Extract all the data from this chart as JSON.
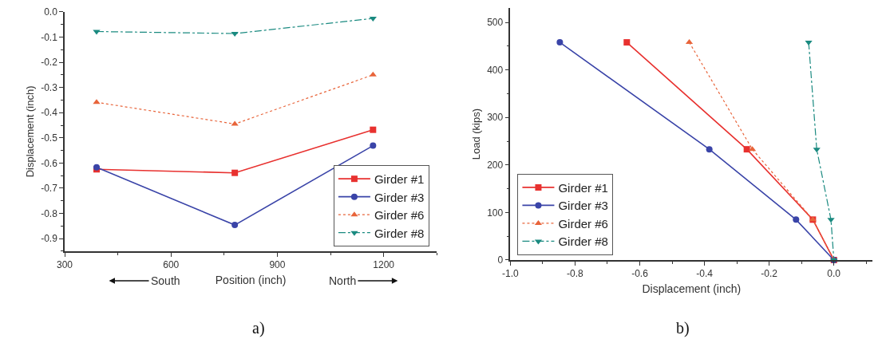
{
  "chart_data": [
    {
      "type": "line",
      "xlabel": "Position (inch)",
      "ylabel": "Displacement (inch)",
      "xlim": [
        300,
        1350
      ],
      "xticks": [
        300,
        600,
        900,
        1200
      ],
      "ylim": [
        -0.95,
        0.0
      ],
      "yticks": [
        {
          "value": 0.0,
          "label": "0.0"
        },
        -0.1,
        -0.2,
        -0.3,
        -0.4,
        -0.5,
        -0.6,
        -0.7,
        -0.8,
        -0.9
      ],
      "legend": "bottom right",
      "annotations": [
        "South",
        "North",
        "a)"
      ],
      "series": [
        {
          "name": "Girder #1",
          "color": "#e8312f",
          "marker": "square",
          "line_style": "solid",
          "x": [
            390,
            780,
            1170
          ],
          "values": [
            -0.625,
            -0.639,
            -0.468
          ]
        },
        {
          "name": "Girder #3",
          "color": "#3a44a8",
          "marker": "circle",
          "line_style": "solid",
          "x": [
            390,
            780,
            1170
          ],
          "values": [
            -0.617,
            -0.846,
            -0.531
          ]
        },
        {
          "name": "Girder #6",
          "color": "#e8643a",
          "marker": "triangle",
          "line_style": "dotted",
          "x": [
            390,
            780,
            1170
          ],
          "values": [
            -0.359,
            -0.445,
            -0.25
          ]
        },
        {
          "name": "Girder #8",
          "color": "#1a8a80",
          "marker": "triangle-down",
          "line_style": "dashed",
          "x": [
            390,
            780,
            1170
          ],
          "values": [
            -0.078,
            -0.086,
            -0.026
          ]
        }
      ]
    },
    {
      "type": "line",
      "xlabel": "Displacement (inch)",
      "ylabel": "Load (kips)",
      "xlim": [
        -1.0,
        0.12
      ],
      "xticks": [
        {
          "value": -1.0,
          "label": "-1.0"
        },
        -0.8,
        -0.6,
        -0.4,
        -0.2,
        {
          "value": 0.0,
          "label": "0.0"
        }
      ],
      "ylim": [
        0,
        530
      ],
      "yticks": [
        0,
        100,
        200,
        300,
        400,
        500
      ],
      "legend": "bottom left",
      "annotations": [
        "b)"
      ],
      "series": [
        {
          "name": "Girder #1",
          "color": "#e8312f",
          "marker": "square",
          "line_style": "solid",
          "x": [
            -0.64,
            -0.269,
            -0.065,
            0.0
          ],
          "values": [
            458,
            233,
            85,
            0
          ]
        },
        {
          "name": "Girder #3",
          "color": "#3a44a8",
          "marker": "circle",
          "line_style": "solid",
          "x": [
            -0.847,
            -0.385,
            -0.117,
            0.0
          ],
          "values": [
            458,
            233,
            85,
            0
          ]
        },
        {
          "name": "Girder #6",
          "color": "#e8643a",
          "marker": "triangle",
          "line_style": "dotted",
          "x": [
            -0.447,
            -0.252,
            -0.065,
            0.0
          ],
          "values": [
            458,
            233,
            85,
            0
          ]
        },
        {
          "name": "Girder #8",
          "color": "#1a8a80",
          "marker": "triangle-down",
          "line_style": "dashed",
          "x": [
            -0.078,
            -0.053,
            -0.009,
            0.0
          ],
          "values": [
            458,
            233,
            85,
            0
          ]
        }
      ]
    }
  ]
}
